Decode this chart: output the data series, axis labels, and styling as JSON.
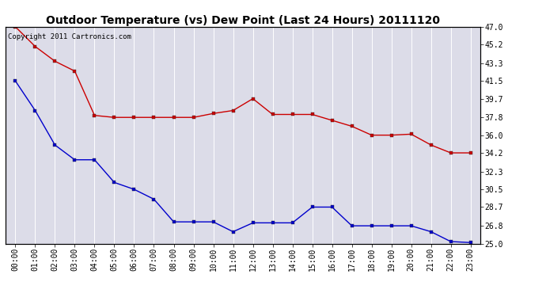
{
  "title": "Outdoor Temperature (vs) Dew Point (Last 24 Hours) 20111120",
  "copyright_text": "Copyright 2011 Cartronics.com",
  "x_labels": [
    "00:00",
    "01:00",
    "02:00",
    "03:00",
    "04:00",
    "05:00",
    "06:00",
    "07:00",
    "08:00",
    "09:00",
    "10:00",
    "11:00",
    "12:00",
    "13:00",
    "14:00",
    "15:00",
    "16:00",
    "17:00",
    "18:00",
    "19:00",
    "20:00",
    "21:00",
    "22:00",
    "23:00"
  ],
  "temp_red": [
    47.0,
    45.0,
    43.5,
    42.5,
    38.0,
    37.8,
    37.8,
    37.8,
    37.8,
    37.8,
    38.2,
    38.5,
    39.7,
    38.1,
    38.1,
    38.1,
    37.5,
    36.9,
    36.0,
    36.0,
    36.1,
    35.0,
    34.2,
    34.2
  ],
  "dew_blue": [
    41.5,
    38.5,
    35.0,
    33.5,
    33.5,
    31.2,
    30.5,
    29.5,
    27.2,
    27.2,
    27.2,
    26.2,
    27.1,
    27.1,
    27.1,
    28.7,
    28.7,
    26.8,
    26.8,
    26.8,
    26.8,
    26.2,
    25.2,
    25.1
  ],
  "ylim": [
    25.0,
    47.0
  ],
  "yticks": [
    25.0,
    26.8,
    28.7,
    30.5,
    32.3,
    34.2,
    36.0,
    37.8,
    39.7,
    41.5,
    43.3,
    45.2,
    47.0
  ],
  "red_color": "#cc0000",
  "blue_color": "#0000cc",
  "bg_color": "#dcdce8",
  "grid_color": "#ffffff",
  "fig_bg_color": "#ffffff",
  "title_fontsize": 10,
  "copyright_fontsize": 6.5,
  "tick_fontsize": 7
}
